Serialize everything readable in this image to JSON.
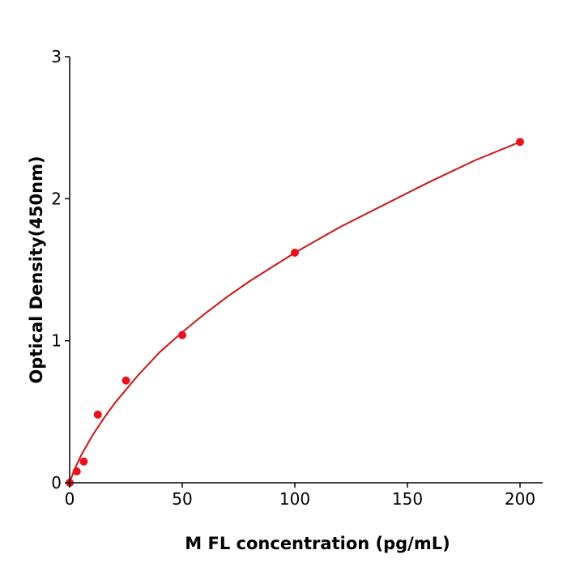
{
  "chart_data": {
    "type": "scatter",
    "title": "",
    "xlabel": "M  FL concentration (pg/mL)",
    "ylabel": "Optical Density(450nm)",
    "xlim": [
      0,
      210
    ],
    "ylim": [
      0,
      3
    ],
    "x_ticks": [
      0,
      50,
      100,
      150,
      200
    ],
    "y_ticks": [
      0,
      1,
      2,
      3
    ],
    "grid": false,
    "legend": "none",
    "series": [
      {
        "kind": "points",
        "color": "#e8121c",
        "points": [
          {
            "x": 0,
            "y": 0.0
          },
          {
            "x": 3.125,
            "y": 0.08
          },
          {
            "x": 6.25,
            "y": 0.15
          },
          {
            "x": 12.5,
            "y": 0.48
          },
          {
            "x": 25,
            "y": 0.72
          },
          {
            "x": 50,
            "y": 1.04
          },
          {
            "x": 100,
            "y": 1.62
          },
          {
            "x": 200,
            "y": 2.4
          }
        ]
      },
      {
        "kind": "fit-curve",
        "color": "#cc1414",
        "points": [
          {
            "x": 0,
            "y": 0.0
          },
          {
            "x": 2,
            "y": 0.09
          },
          {
            "x": 5,
            "y": 0.19
          },
          {
            "x": 10,
            "y": 0.33
          },
          {
            "x": 15,
            "y": 0.45
          },
          {
            "x": 20,
            "y": 0.56
          },
          {
            "x": 30,
            "y": 0.75
          },
          {
            "x": 40,
            "y": 0.92
          },
          {
            "x": 50,
            "y": 1.06
          },
          {
            "x": 60,
            "y": 1.19
          },
          {
            "x": 70,
            "y": 1.31
          },
          {
            "x": 80,
            "y": 1.42
          },
          {
            "x": 90,
            "y": 1.52
          },
          {
            "x": 100,
            "y": 1.62
          },
          {
            "x": 120,
            "y": 1.8
          },
          {
            "x": 140,
            "y": 1.96
          },
          {
            "x": 160,
            "y": 2.12
          },
          {
            "x": 180,
            "y": 2.27
          },
          {
            "x": 200,
            "y": 2.4
          }
        ]
      }
    ]
  }
}
